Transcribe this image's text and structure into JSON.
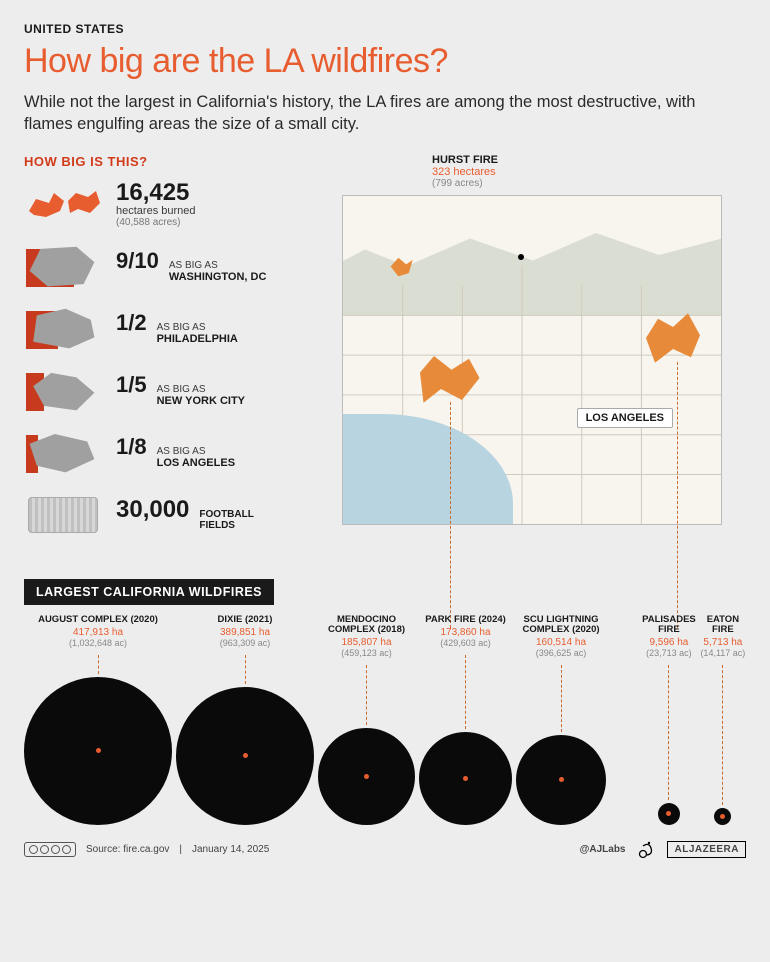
{
  "kicker": "UNITED STATES",
  "headline": "How big are the LA wildfires?",
  "dek": "While not the largest in California's history, the LA fires are among the most destructive, with flames engulfing areas the size of a small city.",
  "howBig": {
    "title": "HOW BIG IS THIS?",
    "burned": {
      "value": "16,425",
      "line1": "hectares burned",
      "line2": "(40,588 acres)"
    },
    "comparisons": [
      {
        "frac": "9/10",
        "line1": "AS BIG AS",
        "line2": "WASHINGTON, DC"
      },
      {
        "frac": "1/2",
        "line1": "AS BIG AS",
        "line2": "PHILADELPHIA"
      },
      {
        "frac": "1/5",
        "line1": "AS BIG AS",
        "line2": "NEW YORK CITY"
      },
      {
        "frac": "1/8",
        "line1": "AS BIG AS",
        "line2": "LOS ANGELES"
      }
    ],
    "football": {
      "value": "30,000",
      "label": "FOOTBALL\nFIELDS"
    }
  },
  "hurst": {
    "name": "HURST FIRE",
    "ha": "323 hectares",
    "ac": "(799 acres)"
  },
  "map": {
    "laLabel": "LOS ANGELES"
  },
  "colors": {
    "accent": "#e85d2f",
    "fireShape": "#e78b3a",
    "circle": "#0a0a0a",
    "bg": "#ededed",
    "ocean": "#b8d4e0",
    "land": "#f8f4ee"
  },
  "largest": {
    "title": "LARGEST CALIFORNIA WILDFIRES",
    "main": [
      {
        "name": "AUGUST COMPLEX (2020)",
        "ha": "417,913 ha",
        "ac": "(1,032,648 ac)",
        "d": 148
      },
      {
        "name": "DIXIE (2021)",
        "ha": "389,851 ha",
        "ac": "(963,309 ac)",
        "d": 138
      },
      {
        "name": "MENDOCINO COMPLEX (2018)",
        "ha": "185,807 ha",
        "ac": "(459,123 ac)",
        "d": 97
      },
      {
        "name": "PARK FIRE (2024)",
        "ha": "173,860 ha",
        "ac": "(429,603 ac)",
        "d": 93
      },
      {
        "name": "SCU LIGHTNING COMPLEX (2020)",
        "ha": "160,514 ha",
        "ac": "(396,625 ac)",
        "d": 90
      }
    ],
    "la": [
      {
        "name": "PALISADES FIRE",
        "ha": "9,596 ha",
        "ac": "(23,713 ac)",
        "d": 22
      },
      {
        "name": "EATON FIRE",
        "ha": "5,713 ha",
        "ac": "(14,117 ac)",
        "d": 17
      }
    ]
  },
  "footer": {
    "source": "Source: fire.ca.gov",
    "date": "January 14, 2025",
    "handle": "@AJLabs",
    "brand": "ALJAZEERA",
    "cc": "CC BY NC SA"
  }
}
